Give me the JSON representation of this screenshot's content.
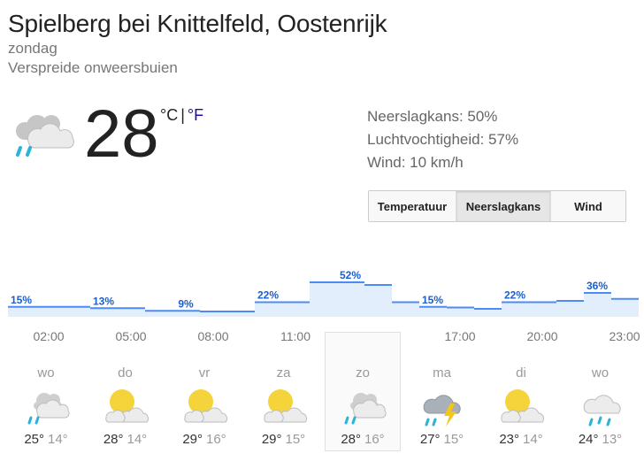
{
  "header": {
    "location": "Spielberg bei Knittelfeld, Oostenrijk",
    "day": "zondag",
    "condition": "Verspreide onweersbuien"
  },
  "current": {
    "temperature": "28",
    "unit_c": "°C",
    "separator": "|",
    "unit_f": "°F",
    "icon": "cloud-rain-icon"
  },
  "details": {
    "precipitation": "Neerslagkans: 50%",
    "humidity": "Luchtvochtigheid: 57%",
    "wind": "Wind: 10 km/h"
  },
  "tabs": [
    {
      "label": "Temperatuur",
      "active": false
    },
    {
      "label": "Neerslagkans",
      "active": true
    },
    {
      "label": "Wind",
      "active": false
    }
  ],
  "chart_data": {
    "type": "area",
    "title": "",
    "xlabel": "",
    "ylabel": "",
    "x": [
      "02:00",
      "03:00",
      "04:00",
      "05:00",
      "06:00",
      "07:00",
      "08:00",
      "09:00",
      "10:00",
      "11:00",
      "12:00",
      "13:00",
      "14:00",
      "15:00",
      "16:00",
      "17:00",
      "18:00",
      "19:00",
      "20:00",
      "21:00",
      "22:00",
      "23:00",
      "00:00"
    ],
    "values": [
      15,
      15,
      15,
      13,
      13,
      9,
      9,
      8,
      8,
      22,
      22,
      52,
      52,
      48,
      22,
      15,
      14,
      12,
      22,
      22,
      24,
      36,
      27
    ],
    "labels": [
      {
        "text": "15%",
        "x": "02:00"
      },
      {
        "text": "13%",
        "x": "05:00"
      },
      {
        "text": "9%",
        "x": "08:00"
      },
      {
        "text": "22%",
        "x": "11:00"
      },
      {
        "text": "52%",
        "x": "14:00"
      },
      {
        "text": "15%",
        "x": "17:00"
      },
      {
        "text": "22%",
        "x": "20:00"
      },
      {
        "text": "36%",
        "x": "23:00"
      }
    ],
    "tick_labels": [
      "02:00",
      "05:00",
      "08:00",
      "11:00",
      "14:00",
      "17:00",
      "20:00",
      "23:00"
    ],
    "ylim": [
      0,
      100
    ],
    "grid": false,
    "line_color": "#4c8bf5",
    "fill_color": "#e3eefc",
    "label_color": "#1a5fd0"
  },
  "forecast": [
    {
      "day": "wo",
      "high": "25°",
      "low": "14°",
      "icon": "cloud-rain-icon",
      "selected": false
    },
    {
      "day": "do",
      "high": "28°",
      "low": "14°",
      "icon": "partly-cloudy-icon",
      "selected": false
    },
    {
      "day": "vr",
      "high": "29°",
      "low": "16°",
      "icon": "partly-cloudy-icon",
      "selected": false
    },
    {
      "day": "za",
      "high": "29°",
      "low": "15°",
      "icon": "partly-cloudy-icon",
      "selected": false
    },
    {
      "day": "zo",
      "high": "28°",
      "low": "16°",
      "icon": "cloud-rain-icon",
      "selected": true
    },
    {
      "day": "ma",
      "high": "27°",
      "low": "15°",
      "icon": "thunderstorm-icon",
      "selected": false
    },
    {
      "day": "di",
      "high": "23°",
      "low": "14°",
      "icon": "partly-cloudy-icon",
      "selected": false
    },
    {
      "day": "wo",
      "high": "24°",
      "low": "13°",
      "icon": "showers-icon",
      "selected": false
    }
  ]
}
